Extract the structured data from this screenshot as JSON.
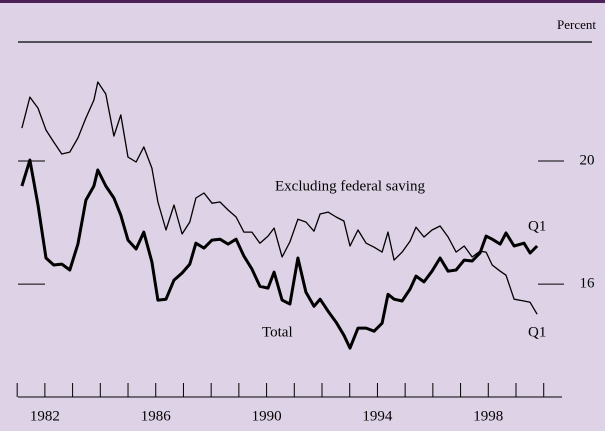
{
  "chart_data": {
    "type": "line",
    "y_unit_label": "Percent",
    "annotations": [
      {
        "text": "Excluding federal saving",
        "series": 0
      },
      {
        "text": "Total",
        "series": 1
      },
      {
        "text": "Q1",
        "series": 0
      },
      {
        "text": "Q1",
        "series": 1
      }
    ],
    "xlim": [
      1981.03,
      2000.66
    ],
    "xticks": [
      1982,
      1986,
      1990,
      1994,
      1998
    ],
    "minor_xticks": [
      1981,
      1982,
      1983,
      1984,
      1985,
      1986,
      1987,
      1988,
      1989,
      1990,
      1991,
      1992,
      1993,
      1994,
      1995,
      1996,
      1997,
      1998,
      1999,
      2000
    ],
    "ylim": [
      12.33,
      23.87
    ],
    "yticks": [
      16,
      20
    ],
    "x": [
      1981.17,
      1981.46,
      1981.75,
      1982.04,
      1982.32,
      1982.61,
      1982.9,
      1983.19,
      1983.48,
      1983.77,
      1983.91,
      1984.2,
      1984.49,
      1984.74,
      1985.0,
      1985.29,
      1985.57,
      1985.86,
      1986.08,
      1986.37,
      1986.66,
      1986.95,
      1987.23,
      1987.45,
      1987.74,
      1988.03,
      1988.32,
      1988.61,
      1988.9,
      1989.18,
      1989.47,
      1989.76,
      1990.05,
      1990.27,
      1990.56,
      1990.84,
      1991.13,
      1991.42,
      1991.71,
      1991.93,
      1992.22,
      1992.51,
      1992.79,
      1993.01,
      1993.3,
      1993.59,
      1993.88,
      1994.17,
      1994.38,
      1994.6,
      1994.89,
      1995.18,
      1995.39,
      1995.68,
      1995.97,
      1996.26,
      1996.55,
      1996.84,
      1997.13,
      1997.42,
      1997.7,
      1997.92,
      1998.14,
      1998.43,
      1998.64,
      1998.93,
      1999.29,
      1999.51,
      1999.76
    ],
    "series": [
      {
        "name": "Excluding federal saving",
        "color": "#000000",
        "width": 1.3,
        "values": [
          21.07,
          22.08,
          21.72,
          21.01,
          20.62,
          20.23,
          20.29,
          20.75,
          21.4,
          21.98,
          22.57,
          22.18,
          20.81,
          21.5,
          20.13,
          19.97,
          20.46,
          19.77,
          18.67,
          17.76,
          18.57,
          17.63,
          18.02,
          18.8,
          18.96,
          18.63,
          18.67,
          18.41,
          18.18,
          17.69,
          17.69,
          17.33,
          17.56,
          17.82,
          16.88,
          17.37,
          18.11,
          18.02,
          17.72,
          18.28,
          18.34,
          18.18,
          18.05,
          17.24,
          17.76,
          17.33,
          17.2,
          17.04,
          17.69,
          16.78,
          17.04,
          17.4,
          17.85,
          17.53,
          17.76,
          17.89,
          17.53,
          17.04,
          17.24,
          16.88,
          17.07,
          17.04,
          16.62,
          16.42,
          16.29,
          15.51,
          15.45,
          15.41,
          15.02
        ]
      },
      {
        "name": "Total",
        "color": "#000000",
        "width": 3,
        "values": [
          19.19,
          20.03,
          18.57,
          16.85,
          16.62,
          16.65,
          16.46,
          17.3,
          18.73,
          19.19,
          19.71,
          19.19,
          18.8,
          18.24,
          17.43,
          17.14,
          17.69,
          16.72,
          15.48,
          15.51,
          16.13,
          16.36,
          16.65,
          17.33,
          17.17,
          17.43,
          17.46,
          17.3,
          17.46,
          16.91,
          16.49,
          15.93,
          15.87,
          16.39,
          15.48,
          15.35,
          16.85,
          15.74,
          15.28,
          15.51,
          15.12,
          14.76,
          14.34,
          13.92,
          14.57,
          14.57,
          14.47,
          14.73,
          15.67,
          15.51,
          15.45,
          15.84,
          16.26,
          16.07,
          16.42,
          16.85,
          16.42,
          16.46,
          16.78,
          16.75,
          17.01,
          17.56,
          17.46,
          17.3,
          17.66,
          17.24,
          17.33,
          17.01,
          17.24
        ]
      }
    ]
  }
}
